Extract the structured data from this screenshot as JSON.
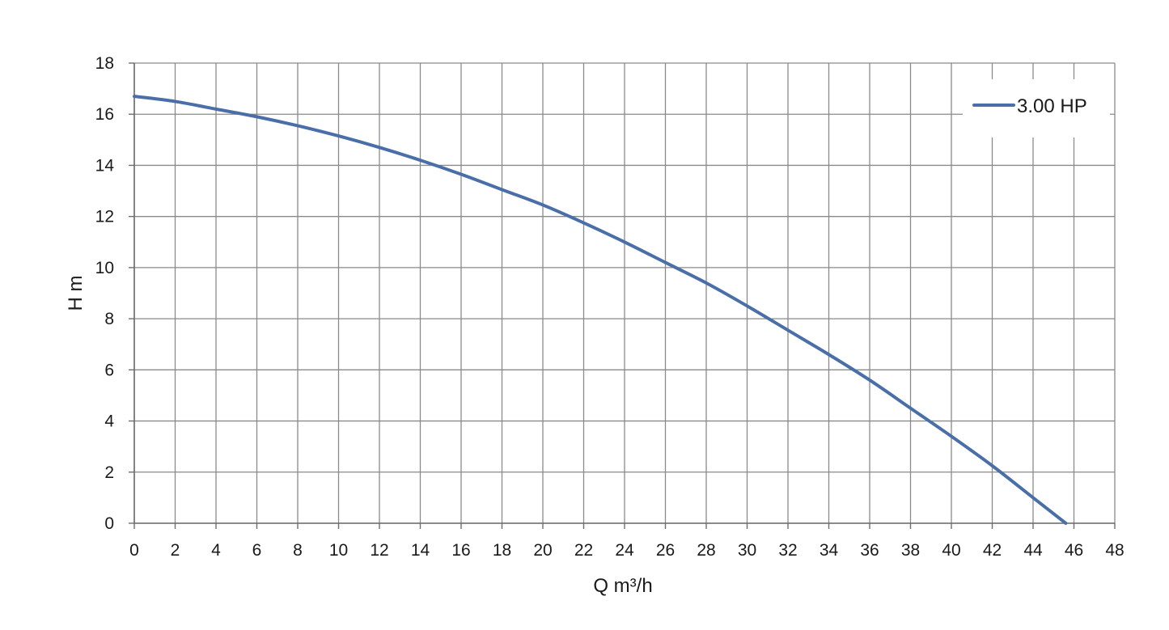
{
  "chart_data": {
    "type": "line",
    "title": "",
    "xlabel": "Q  m³/h",
    "ylabel": "H  m",
    "xlim": [
      0,
      48
    ],
    "ylim": [
      0,
      18
    ],
    "x_ticks": [
      0,
      2,
      4,
      6,
      8,
      10,
      12,
      14,
      16,
      18,
      20,
      22,
      24,
      26,
      28,
      30,
      32,
      34,
      36,
      38,
      40,
      42,
      44,
      46,
      48
    ],
    "y_ticks": [
      0,
      2,
      4,
      6,
      8,
      10,
      12,
      14,
      16,
      18
    ],
    "grid": true,
    "legend_position": "top-right",
    "series": [
      {
        "name": "3.00 HP",
        "color": "#4a6fa8",
        "x": [
          0,
          2,
          4,
          6,
          8,
          10,
          12,
          14,
          16,
          18,
          20,
          22,
          24,
          26,
          28,
          30,
          32,
          34,
          36,
          38,
          40,
          42,
          44,
          45.6
        ],
        "y": [
          16.7,
          16.5,
          16.2,
          15.9,
          15.55,
          15.15,
          14.7,
          14.2,
          13.65,
          13.05,
          12.45,
          11.75,
          11.0,
          10.2,
          9.4,
          8.5,
          7.55,
          6.6,
          5.6,
          4.5,
          3.4,
          2.25,
          1.0,
          0
        ]
      }
    ]
  }
}
